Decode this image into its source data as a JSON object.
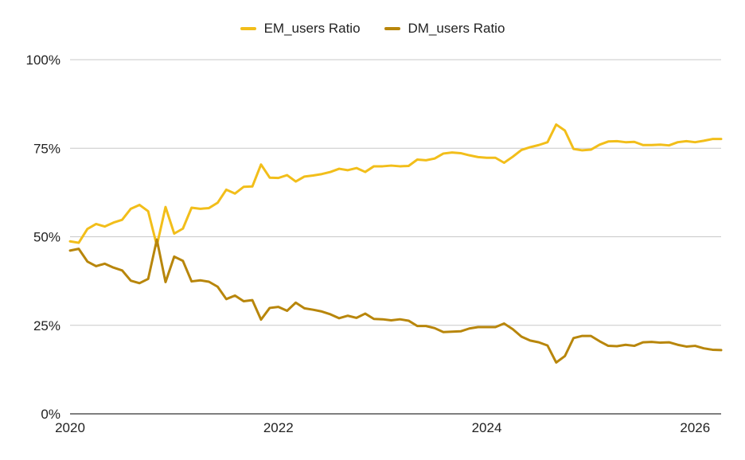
{
  "chart_data": {
    "type": "line",
    "title": "",
    "xlabel": "",
    "ylabel": "",
    "x_ticks": [
      "2020",
      "2022",
      "2024",
      "2026"
    ],
    "y_ticks": [
      "0%",
      "25%",
      "50%",
      "75%",
      "100%"
    ],
    "ylim": [
      0,
      1
    ],
    "xlim": [
      "2020-01",
      "2026-04"
    ],
    "grid": true,
    "legend_position": "top",
    "x": [
      "2020-01",
      "2020-02",
      "2020-03",
      "2020-04",
      "2020-05",
      "2020-06",
      "2020-07",
      "2020-08",
      "2020-09",
      "2020-10",
      "2020-11",
      "2020-12",
      "2021-01",
      "2021-02",
      "2021-03",
      "2021-04",
      "2021-05",
      "2021-06",
      "2021-07",
      "2021-08",
      "2021-09",
      "2021-10",
      "2021-11",
      "2021-12",
      "2022-01",
      "2022-02",
      "2022-03",
      "2022-04",
      "2022-05",
      "2022-06",
      "2022-07",
      "2022-08",
      "2022-09",
      "2022-10",
      "2022-11",
      "2022-12",
      "2023-01",
      "2023-02",
      "2023-03",
      "2023-04",
      "2023-05",
      "2023-06",
      "2023-07",
      "2023-08",
      "2023-09",
      "2023-10",
      "2023-11",
      "2023-12",
      "2024-01",
      "2024-02",
      "2024-03",
      "2024-04",
      "2024-05",
      "2024-06",
      "2024-07",
      "2024-08",
      "2024-09",
      "2024-10",
      "2024-11",
      "2024-12",
      "2025-01",
      "2025-02",
      "2025-03",
      "2025-04",
      "2025-05",
      "2025-06",
      "2025-07",
      "2025-08",
      "2025-09",
      "2025-10",
      "2025-11",
      "2025-12",
      "2026-01",
      "2026-02",
      "2026-03",
      "2026-04"
    ],
    "series": [
      {
        "name": "EM_users Ratio",
        "color": "#F2BE1A",
        "values": [
          0.487,
          0.483,
          0.522,
          0.536,
          0.529,
          0.54,
          0.548,
          0.579,
          0.59,
          0.572,
          0.475,
          0.584,
          0.509,
          0.523,
          0.582,
          0.579,
          0.581,
          0.596,
          0.633,
          0.622,
          0.641,
          0.642,
          0.704,
          0.667,
          0.666,
          0.674,
          0.656,
          0.67,
          0.673,
          0.677,
          0.683,
          0.692,
          0.688,
          0.694,
          0.683,
          0.699,
          0.699,
          0.701,
          0.699,
          0.7,
          0.718,
          0.716,
          0.721,
          0.735,
          0.738,
          0.736,
          0.73,
          0.725,
          0.723,
          0.723,
          0.709,
          0.726,
          0.745,
          0.753,
          0.759,
          0.767,
          0.817,
          0.8,
          0.748,
          0.744,
          0.746,
          0.76,
          0.769,
          0.77,
          0.767,
          0.768,
          0.759,
          0.759,
          0.76,
          0.758,
          0.767,
          0.77,
          0.767,
          0.771,
          0.776,
          0.776
        ]
      },
      {
        "name": "DM_users Ratio",
        "color": "#B8860B",
        "values": [
          0.461,
          0.466,
          0.43,
          0.417,
          0.424,
          0.413,
          0.405,
          0.376,
          0.369,
          0.381,
          0.492,
          0.372,
          0.444,
          0.432,
          0.374,
          0.377,
          0.373,
          0.359,
          0.324,
          0.334,
          0.318,
          0.321,
          0.266,
          0.299,
          0.302,
          0.291,
          0.314,
          0.298,
          0.294,
          0.289,
          0.281,
          0.27,
          0.277,
          0.271,
          0.283,
          0.268,
          0.267,
          0.264,
          0.267,
          0.263,
          0.248,
          0.248,
          0.242,
          0.231,
          0.232,
          0.233,
          0.241,
          0.245,
          0.245,
          0.245,
          0.255,
          0.239,
          0.218,
          0.207,
          0.202,
          0.193,
          0.145,
          0.163,
          0.214,
          0.22,
          0.22,
          0.205,
          0.192,
          0.191,
          0.195,
          0.192,
          0.202,
          0.203,
          0.201,
          0.202,
          0.195,
          0.19,
          0.192,
          0.185,
          0.181,
          0.18
        ]
      }
    ]
  }
}
